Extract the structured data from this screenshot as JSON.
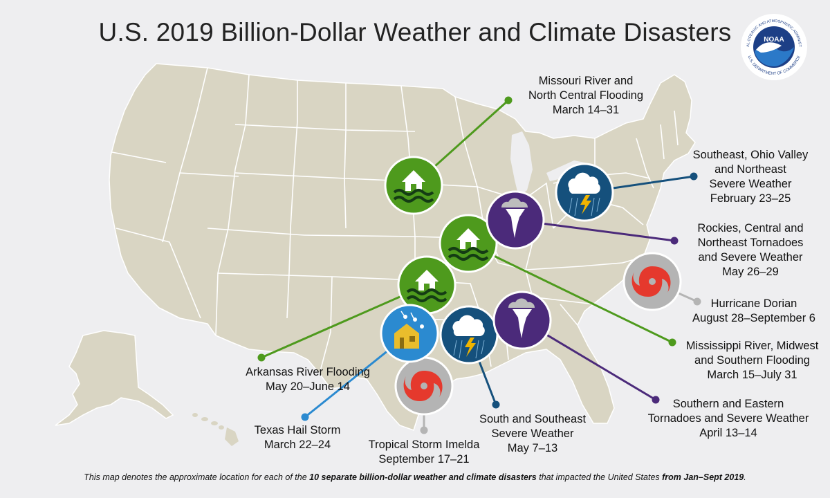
{
  "title": "U.S. 2019 Billion-Dollar Weather and Climate Disasters",
  "logo": {
    "text": "NOAA",
    "ring_top": "NATIONAL OCEANIC AND ATMOSPHERIC ADMINISTRATION",
    "ring_bottom": "U.S. DEPARTMENT OF COMMERCE"
  },
  "colors": {
    "background": "#eeeef0",
    "land": "#d9d5c3",
    "state_border": "#ffffff",
    "flooding": "#4e9a1d",
    "tornado": "#4b2a7a",
    "severe_weather": "#15507c",
    "hurricane": "#b4b4b4",
    "hail": "#2b8ad0"
  },
  "events": [
    {
      "id": "missouri",
      "icon": "flood-icon",
      "lines": [
        "Missouri River and",
        "North Central Flooding",
        "March 14–31"
      ]
    },
    {
      "id": "southeast-ohio",
      "icon": "severe-storm-icon",
      "lines": [
        "Southeast, Ohio Valley",
        "and Northeast",
        "Severe Weather",
        "February 23–25"
      ]
    },
    {
      "id": "rockies",
      "icon": "tornado-icon",
      "lines": [
        "Rockies, Central and",
        "Northeast Tornadoes",
        "and Severe Weather",
        "May 26–29"
      ]
    },
    {
      "id": "dorian",
      "icon": "hurricane-icon",
      "lines": [
        "Hurricane Dorian",
        "August 28–September 6"
      ]
    },
    {
      "id": "mississippi",
      "icon": "flood-icon",
      "lines": [
        "Mississippi River, Midwest",
        "and Southern Flooding",
        "March 15–July 31"
      ]
    },
    {
      "id": "southern-eastern",
      "icon": "tornado-icon",
      "lines": [
        "Southern and Eastern",
        "Tornadoes and Severe Weather",
        "April 13–14"
      ]
    },
    {
      "id": "south-southeast",
      "icon": "severe-storm-icon",
      "lines": [
        "South and Southeast",
        "Severe Weather",
        "May 7–13"
      ]
    },
    {
      "id": "imelda",
      "icon": "hurricane-icon",
      "lines": [
        "Tropical Storm Imelda",
        "September 17–21"
      ]
    },
    {
      "id": "texas-hail",
      "icon": "hail-icon",
      "lines": [
        "Texas Hail Storm",
        "March 22–24"
      ]
    },
    {
      "id": "arkansas",
      "icon": "flood-icon",
      "lines": [
        "Arkansas River Flooding",
        "May 20–June 14"
      ]
    }
  ],
  "footer": {
    "part1": "This map denotes the approximate location for each of the ",
    "bold1": "10 separate billion-dollar weather and climate disasters",
    "part2": " that impacted the United States ",
    "bold2": "from Jan–Sept 2019",
    "part3": "."
  }
}
